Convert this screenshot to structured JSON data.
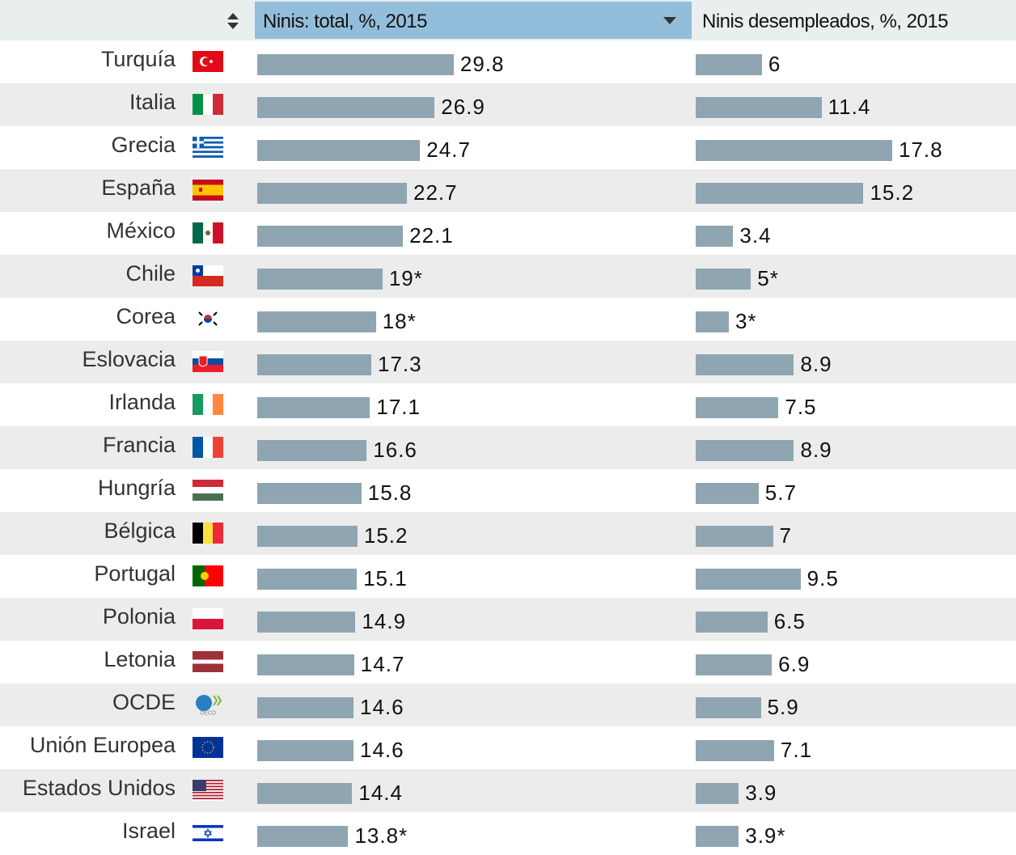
{
  "chart_data": {
    "type": "bar",
    "orientation": "horizontal",
    "columns": [
      {
        "name": "Ninis: total, %, 2015",
        "sorted": "descending"
      },
      {
        "name": "Ninis desempleados, %, 2015"
      }
    ],
    "categories": [
      "Turquía",
      "Italia",
      "Grecia",
      "España",
      "México",
      "Chile",
      "Corea",
      "Eslovacia",
      "Irlanda",
      "Francia",
      "Hungría",
      "Bélgica",
      "Portugal",
      "Polonia",
      "Letonia",
      "OCDE",
      "Unión Europea",
      "Estados Unidos",
      "Israel"
    ],
    "flags": [
      "turkey",
      "italy",
      "greece",
      "spain",
      "mexico",
      "chile",
      "korea",
      "slovakia",
      "ireland",
      "france",
      "hungary",
      "belgium",
      "portugal",
      "poland",
      "latvia",
      "oecd",
      "eu",
      "usa",
      "israel"
    ],
    "series": [
      {
        "name": "Ninis: total, %, 2015",
        "labels": [
          "29.8",
          "26.9",
          "24.7",
          "22.7",
          "22.1",
          "19*",
          "18*",
          "17.3",
          "17.1",
          "16.6",
          "15.8",
          "15.2",
          "15.1",
          "14.9",
          "14.7",
          "14.6",
          "14.6",
          "14.4",
          "13.8*"
        ],
        "values": [
          29.8,
          26.9,
          24.7,
          22.7,
          22.1,
          19,
          18,
          17.3,
          17.1,
          16.6,
          15.8,
          15.2,
          15.1,
          14.9,
          14.7,
          14.6,
          14.6,
          14.4,
          13.8
        ]
      },
      {
        "name": "Ninis desempleados, %, 2015",
        "labels": [
          "6",
          "11.4",
          "17.8",
          "15.2",
          "3.4",
          "5*",
          "3*",
          "8.9",
          "7.5",
          "8.9",
          "5.7",
          "7",
          "9.5",
          "6.5",
          "6.9",
          "5.9",
          "7.1",
          "3.9",
          "3.9*"
        ],
        "values": [
          6,
          11.4,
          17.8,
          15.2,
          3.4,
          5,
          3,
          8.9,
          7.5,
          8.9,
          5.7,
          7,
          9.5,
          6.5,
          6.9,
          5.9,
          7.1,
          3.9,
          3.9
        ]
      }
    ],
    "bar_color": "#8fa5b1",
    "header_active_color": "#93bedb"
  }
}
